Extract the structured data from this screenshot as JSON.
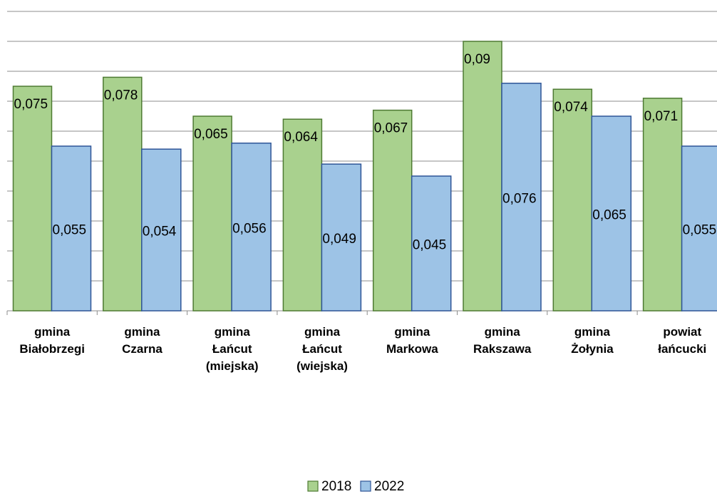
{
  "chart_data": {
    "type": "bar",
    "categories": [
      "gmina Białobrzegi",
      "gmina Czarna",
      "gmina Łańcut (miejska)",
      "gmina Łańcut (wiejska)",
      "gmina Markowa",
      "gmina Rakszawa",
      "gmina Żołynia",
      "powiat łańcucki"
    ],
    "series": [
      {
        "name": "2018",
        "color": "#a9d18e",
        "values": [
          0.075,
          0.078,
          0.065,
          0.064,
          0.067,
          0.09,
          0.074,
          0.071
        ],
        "value_labels": [
          "0,075",
          "0,078",
          "0,065",
          "0,064",
          "0,067",
          "0,09",
          "0,074",
          "0,071"
        ]
      },
      {
        "name": "2022",
        "color": "#9dc3e6",
        "values": [
          0.055,
          0.054,
          0.056,
          0.049,
          0.045,
          0.076,
          0.065,
          0.055
        ],
        "value_labels": [
          "0,055",
          "0,054",
          "0,056",
          "0,049",
          "0,045",
          "0,076",
          "0,065",
          "0,055"
        ]
      }
    ],
    "ylim": [
      0,
      0.1
    ],
    "yticks": [
      0,
      0.01,
      0.02,
      0.03,
      0.04,
      0.05,
      0.06,
      0.07,
      0.08,
      0.09,
      0.1
    ],
    "grid": true,
    "legend": "bottom"
  }
}
